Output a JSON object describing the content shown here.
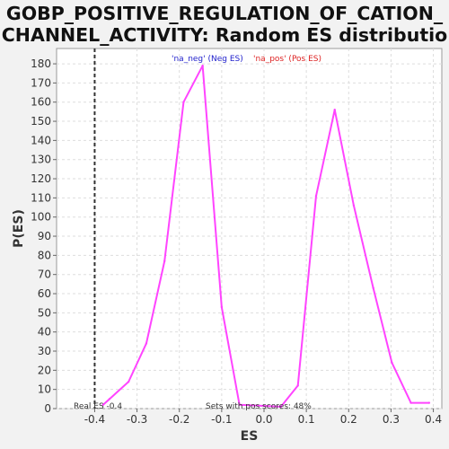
{
  "chart_data": {
    "type": "line",
    "title": "GOBP_POSITIVE_REGULATION_OF_CATION_CHANNEL_ACTIVITY: Random ES distribution",
    "xlabel": "ES",
    "ylabel": "P(ES)",
    "xlim": [
      -0.49,
      0.42
    ],
    "ylim": [
      0,
      188
    ],
    "xticks": [
      -0.4,
      -0.3,
      -0.2,
      -0.1,
      0.0,
      0.1,
      0.2,
      0.3,
      0.4
    ],
    "xtick_labels": [
      "-0.4",
      "-0.3",
      "-0.2",
      "-0.1",
      "0.0",
      "0.1",
      "0.2",
      "0.3",
      "0.4"
    ],
    "yticks": [
      0,
      10,
      20,
      30,
      40,
      50,
      60,
      70,
      80,
      90,
      100,
      110,
      120,
      130,
      140,
      150,
      160,
      170,
      180
    ],
    "grid": true,
    "line_color": "#ff44ff",
    "series": [
      {
        "values_x": [
          -0.38,
          -0.365,
          -0.32,
          -0.278,
          -0.235,
          -0.19,
          -0.145,
          -0.1,
          -0.058,
          0.04
        ],
        "values_y": [
          2,
          5,
          14,
          34,
          77,
          160,
          179,
          53,
          2,
          1
        ]
      },
      {
        "values_x": [
          0.04,
          0.08,
          0.123,
          0.167,
          0.212,
          0.258,
          0.302,
          0.347,
          0.39
        ],
        "values_y": [
          1,
          12,
          111,
          156,
          106,
          63,
          24,
          3,
          3
        ]
      }
    ],
    "real_es": -0.4,
    "legend": [
      {
        "label": "'na_neg' (Neg ES)",
        "color": "#2222cc"
      },
      {
        "label": "'na_pos' (Pos ES)",
        "color": "#dd2222"
      }
    ],
    "annotations": {
      "real_es_text": "Real ES -0.4",
      "pos_scores_text": "Sets with pos scores: 48%"
    }
  }
}
